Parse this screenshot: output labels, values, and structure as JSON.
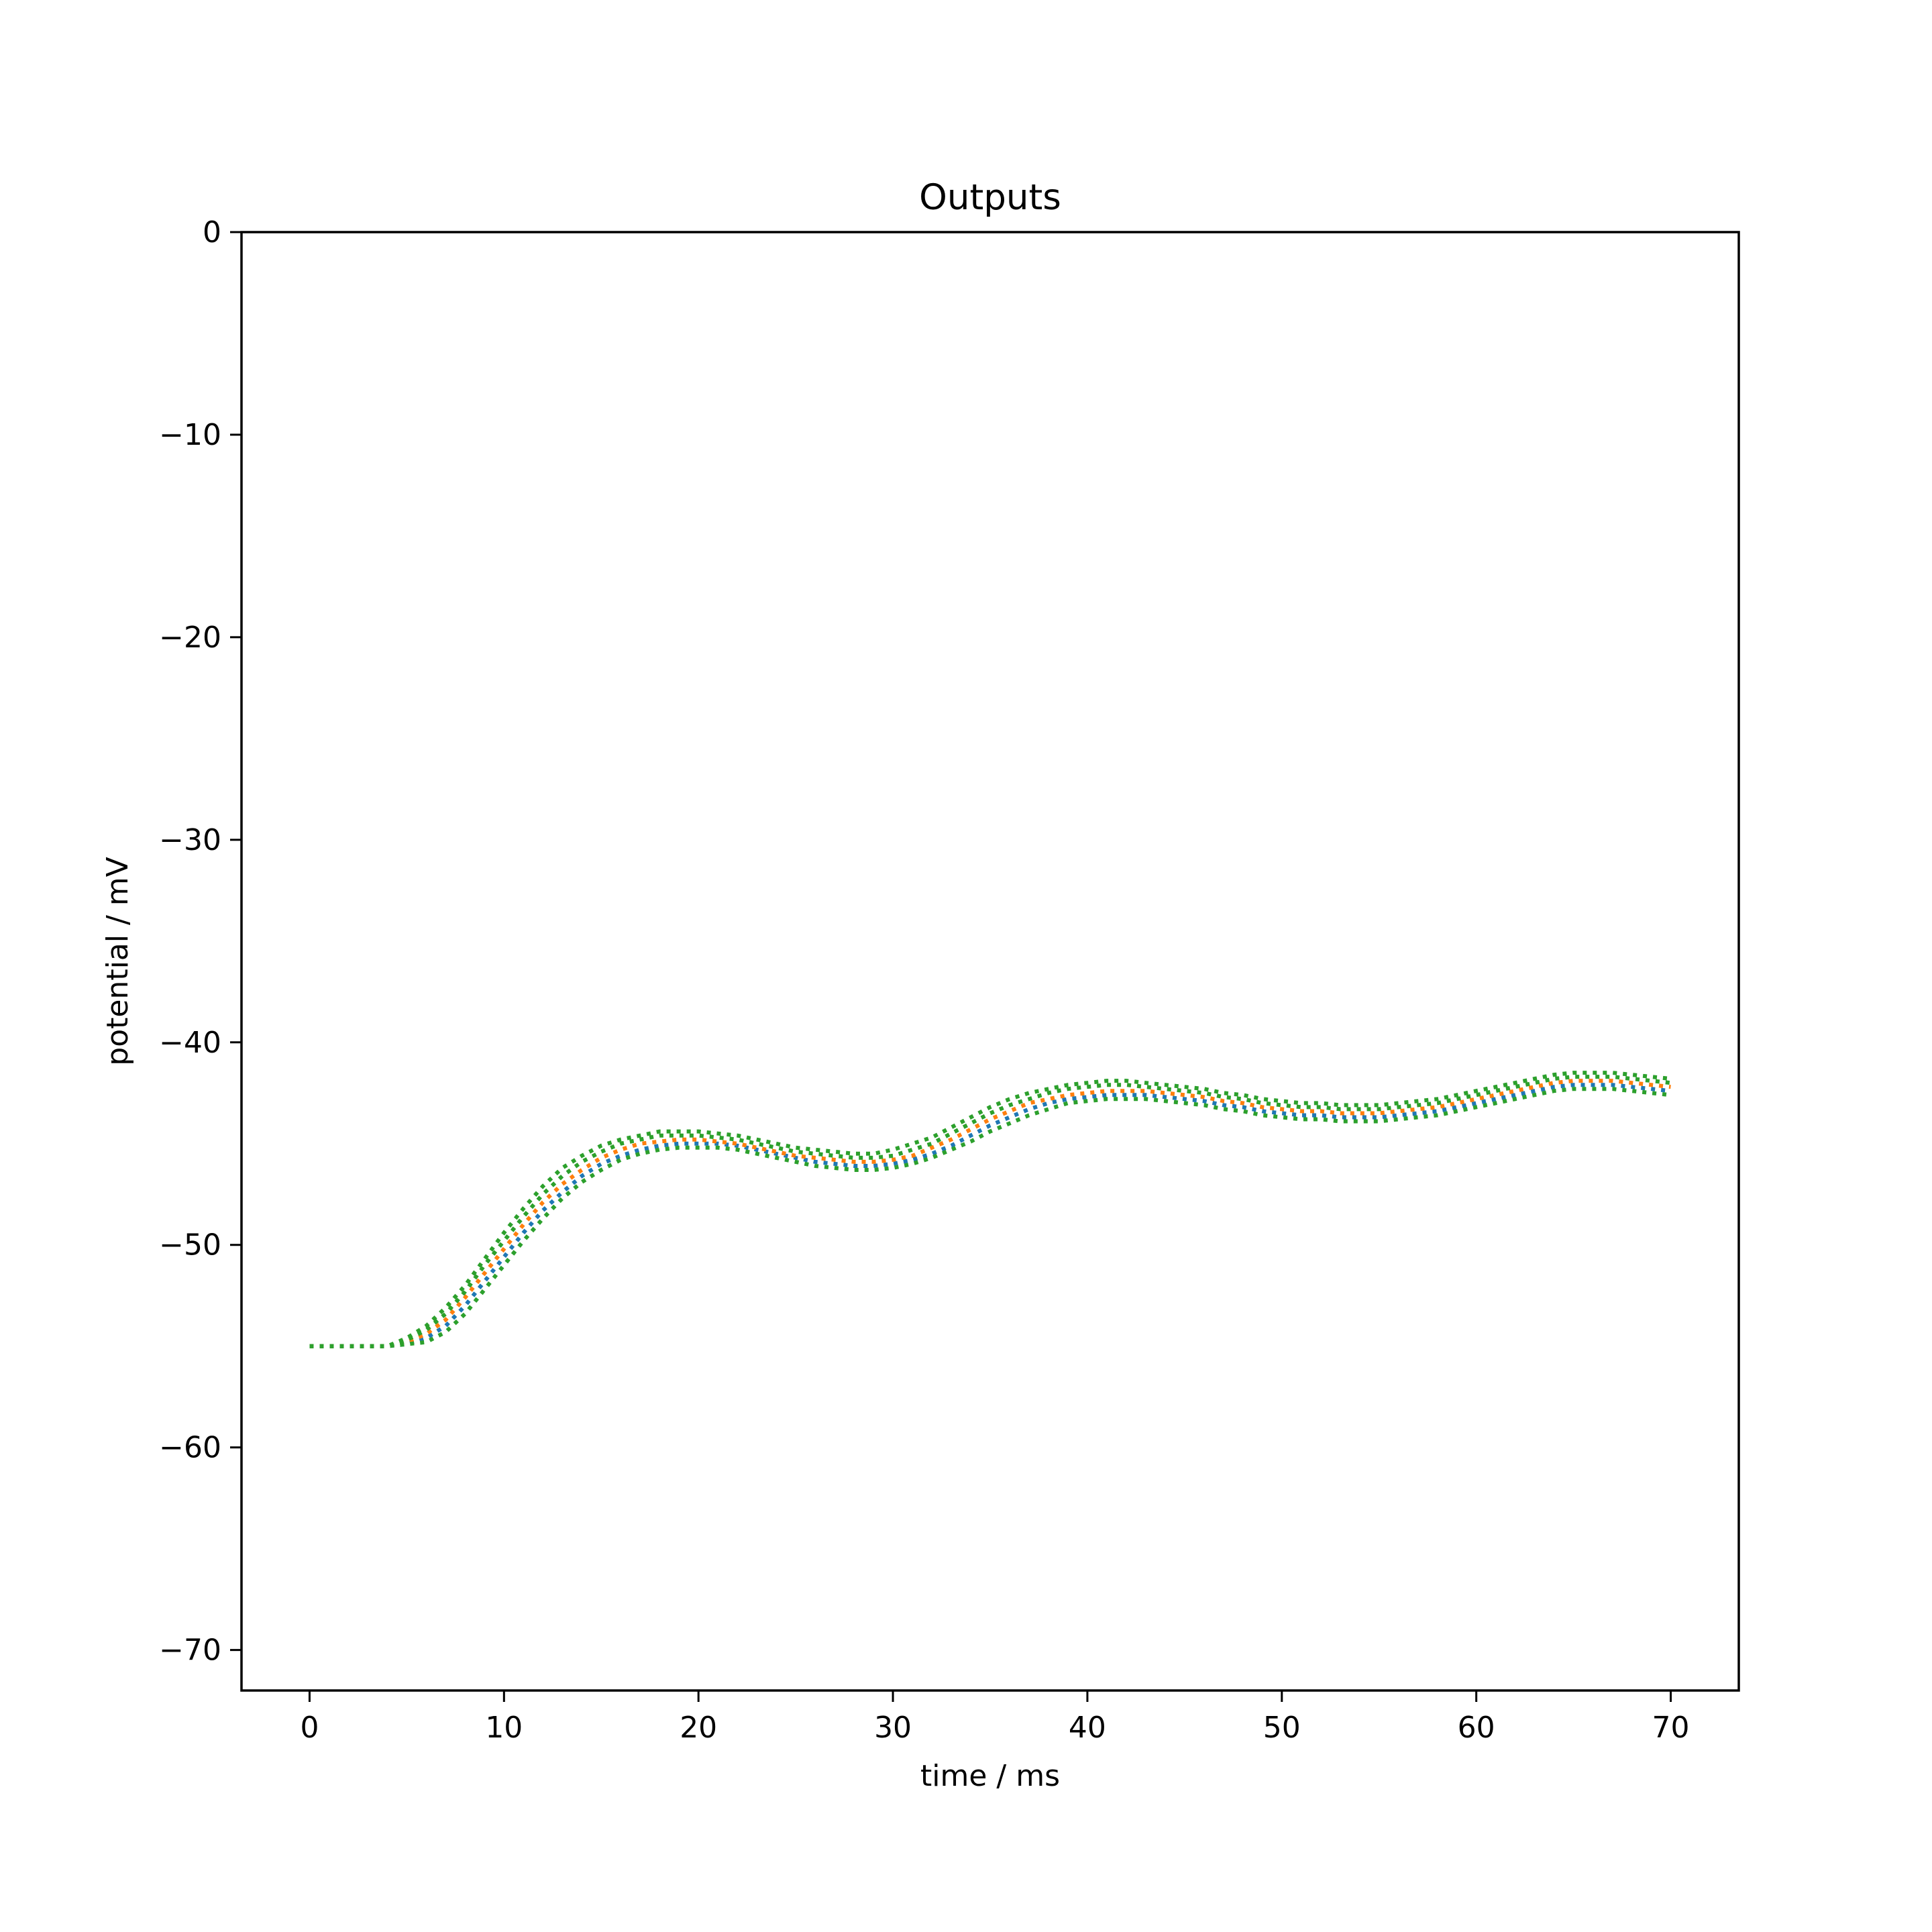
{
  "chart_data": {
    "type": "line",
    "title": "Outputs",
    "xlabel": "time / ms",
    "ylabel": "potential / mV",
    "xlim": [
      -3.5,
      73.5
    ],
    "ylim": [
      -72,
      0
    ],
    "xticks": [
      0,
      10,
      20,
      30,
      40,
      50,
      60,
      70
    ],
    "yticks": [
      0,
      -10,
      -20,
      -30,
      -40,
      -50,
      -60,
      -70
    ],
    "xtick_labels": [
      "0",
      "10",
      "20",
      "30",
      "40",
      "50",
      "60",
      "70"
    ],
    "ytick_labels": [
      "0",
      "−10",
      "−20",
      "−30",
      "−40",
      "−50",
      "−60",
      "−70"
    ],
    "grid": false,
    "legend": "none",
    "line_style": "dotted",
    "series": [
      {
        "color": "#1f77b4",
        "x": [
          0,
          2,
          4,
          5,
          6,
          7,
          8,
          9,
          10,
          11,
          12,
          13,
          14,
          15,
          16,
          17,
          18,
          19,
          20,
          21,
          22,
          23,
          24,
          25,
          26,
          27,
          28,
          29,
          30,
          31,
          32,
          33,
          34,
          35,
          36,
          37,
          38,
          39,
          40,
          41,
          42,
          43,
          44,
          45,
          46,
          47,
          48,
          49,
          50,
          51,
          52,
          53,
          54,
          55,
          56,
          57,
          58,
          59,
          60,
          61,
          62,
          63,
          64,
          65,
          66,
          67,
          68,
          69,
          70
        ],
        "y": [
          -55.0,
          -55.0,
          -55.0,
          -54.9,
          -54.6,
          -54.0,
          -53.0,
          -51.8,
          -50.6,
          -49.4,
          -48.3,
          -47.4,
          -46.6,
          -46.0,
          -45.6,
          -45.3,
          -45.1,
          -45.0,
          -45.0,
          -45.0,
          -45.1,
          -45.3,
          -45.5,
          -45.7,
          -45.9,
          -46.0,
          -46.1,
          -46.1,
          -46.0,
          -45.8,
          -45.5,
          -45.1,
          -44.6,
          -44.1,
          -43.7,
          -43.3,
          -43.0,
          -42.8,
          -42.7,
          -42.6,
          -42.6,
          -42.6,
          -42.7,
          -42.8,
          -42.9,
          -43.1,
          -43.2,
          -43.4,
          -43.5,
          -43.6,
          -43.6,
          -43.7,
          -43.7,
          -43.7,
          -43.6,
          -43.5,
          -43.4,
          -43.2,
          -43.0,
          -42.8,
          -42.6,
          -42.4,
          -42.2,
          -42.1,
          -42.1,
          -42.1,
          -42.2,
          -42.3,
          -42.4
        ]
      },
      {
        "color": "#ff7f0e",
        "x": [
          0,
          2,
          4,
          5,
          6,
          7,
          8,
          9,
          10,
          11,
          12,
          13,
          14,
          15,
          16,
          17,
          18,
          19,
          20,
          21,
          22,
          23,
          24,
          25,
          26,
          27,
          28,
          29,
          30,
          31,
          32,
          33,
          34,
          35,
          36,
          37,
          38,
          39,
          40,
          41,
          42,
          43,
          44,
          45,
          46,
          47,
          48,
          49,
          50,
          51,
          52,
          53,
          54,
          55,
          56,
          57,
          58,
          59,
          60,
          61,
          62,
          63,
          64,
          65,
          66,
          67,
          68,
          69,
          70
        ],
        "y": [
          -55.0,
          -55.0,
          -55.0,
          -54.8,
          -54.4,
          -53.7,
          -52.6,
          -51.4,
          -50.2,
          -49.0,
          -47.9,
          -47.0,
          -46.3,
          -45.7,
          -45.3,
          -45.0,
          -44.9,
          -44.8,
          -44.8,
          -44.9,
          -45.0,
          -45.2,
          -45.4,
          -45.6,
          -45.7,
          -45.8,
          -45.9,
          -45.9,
          -45.8,
          -45.6,
          -45.2,
          -44.8,
          -44.3,
          -43.8,
          -43.4,
          -43.0,
          -42.8,
          -42.6,
          -42.5,
          -42.4,
          -42.4,
          -42.4,
          -42.5,
          -42.6,
          -42.7,
          -42.9,
          -43.0,
          -43.2,
          -43.3,
          -43.4,
          -43.4,
          -43.5,
          -43.5,
          -43.5,
          -43.4,
          -43.3,
          -43.2,
          -43.0,
          -42.8,
          -42.6,
          -42.4,
          -42.2,
          -42.0,
          -41.9,
          -41.9,
          -41.9,
          -42.0,
          -42.1,
          -42.2
        ]
      },
      {
        "color": "#2ca02c",
        "x": [
          0,
          2,
          4,
          5,
          6,
          7,
          8,
          9,
          10,
          11,
          12,
          13,
          14,
          15,
          16,
          17,
          18,
          19,
          20,
          21,
          22,
          23,
          24,
          25,
          26,
          27,
          28,
          29,
          30,
          31,
          32,
          33,
          34,
          35,
          36,
          37,
          38,
          39,
          40,
          41,
          42,
          43,
          44,
          45,
          46,
          47,
          48,
          49,
          50,
          51,
          52,
          53,
          54,
          55,
          56,
          57,
          58,
          59,
          60,
          61,
          62,
          63,
          64,
          65,
          66,
          67,
          68,
          69,
          70
        ],
        "y": [
          -55.0,
          -55.0,
          -55.0,
          -54.7,
          -54.2,
          -53.4,
          -52.3,
          -51.0,
          -49.8,
          -48.6,
          -47.5,
          -46.6,
          -45.9,
          -45.4,
          -45.0,
          -44.8,
          -44.6,
          -44.6,
          -44.6,
          -44.7,
          -44.8,
          -45.0,
          -45.2,
          -45.4,
          -45.5,
          -45.6,
          -45.7,
          -45.7,
          -45.6,
          -45.3,
          -45.0,
          -44.5,
          -44.0,
          -43.5,
          -43.1,
          -42.8,
          -42.5,
          -42.3,
          -42.2,
          -42.1,
          -42.1,
          -42.2,
          -42.3,
          -42.4,
          -42.5,
          -42.7,
          -42.8,
          -43.0,
          -43.1,
          -43.2,
          -43.2,
          -43.3,
          -43.3,
          -43.3,
          -43.2,
          -43.1,
          -43.0,
          -42.8,
          -42.6,
          -42.4,
          -42.2,
          -42.0,
          -41.8,
          -41.7,
          -41.7,
          -41.7,
          -41.8,
          -41.9,
          -42.0
        ]
      },
      {
        "color": "#2ca02c",
        "x": [
          0,
          2,
          4,
          5,
          6,
          7,
          8,
          9,
          10,
          11,
          12,
          13,
          14,
          15,
          16,
          17,
          18,
          19,
          20,
          21,
          22,
          23,
          24,
          25,
          26,
          27,
          28,
          29,
          30,
          31,
          32,
          33,
          34,
          35,
          36,
          37,
          38,
          39,
          40,
          41,
          42,
          43,
          44,
          45,
          46,
          47,
          48,
          49,
          50,
          51,
          52,
          53,
          54,
          55,
          56,
          57,
          58,
          59,
          60,
          61,
          62,
          63,
          64,
          65,
          66,
          67,
          68,
          69,
          70
        ],
        "y": [
          -55.0,
          -55.0,
          -55.0,
          -54.9,
          -54.8,
          -54.3,
          -53.4,
          -52.2,
          -51.0,
          -49.8,
          -48.7,
          -47.7,
          -46.9,
          -46.3,
          -45.8,
          -45.5,
          -45.3,
          -45.2,
          -45.2,
          -45.2,
          -45.3,
          -45.5,
          -45.7,
          -45.9,
          -46.1,
          -46.2,
          -46.3,
          -46.3,
          -46.2,
          -46.0,
          -45.7,
          -45.3,
          -44.9,
          -44.4,
          -44.0,
          -43.6,
          -43.3,
          -43.0,
          -42.9,
          -42.8,
          -42.8,
          -42.8,
          -42.9,
          -43.0,
          -43.1,
          -43.3,
          -43.4,
          -43.6,
          -43.7,
          -43.8,
          -43.8,
          -43.9,
          -43.9,
          -43.9,
          -43.8,
          -43.7,
          -43.6,
          -43.4,
          -43.2,
          -43.0,
          -42.8,
          -42.6,
          -42.4,
          -42.3,
          -42.3,
          -42.3,
          -42.4,
          -42.5,
          -42.6
        ]
      },
      {
        "color": "#2ca02c",
        "x": [
          0,
          2,
          4,
          5,
          6,
          7,
          8,
          9,
          10,
          11,
          12,
          13,
          14,
          15,
          16,
          17,
          18,
          19,
          20,
          21,
          22,
          23,
          24,
          25,
          26,
          27,
          28,
          29,
          30,
          31,
          32,
          33,
          34,
          35,
          36,
          37,
          38,
          39,
          40,
          41,
          42,
          43,
          44,
          45,
          46,
          47,
          48,
          49,
          50,
          51,
          52,
          53,
          54,
          55,
          56,
          57,
          58,
          59,
          60,
          61,
          62,
          63,
          64,
          65,
          66,
          67,
          68,
          69,
          70
        ],
        "y": [
          -55.0,
          -55.0,
          -55.0,
          -54.6,
          -54.0,
          -53.1,
          -52.0,
          -50.7,
          -49.4,
          -48.2,
          -47.1,
          -46.2,
          -45.6,
          -45.1,
          -44.8,
          -44.6,
          -44.4,
          -44.4,
          -44.4,
          -44.5,
          -44.6,
          -44.8,
          -45.0,
          -45.2,
          -45.3,
          -45.4,
          -45.5,
          -45.5,
          -45.3,
          -45.0,
          -44.7,
          -44.2,
          -43.7,
          -43.2,
          -42.8,
          -42.5,
          -42.3,
          -42.1,
          -42.0,
          -41.9,
          -41.9,
          -42.0,
          -42.1,
          -42.2,
          -42.3,
          -42.5,
          -42.6,
          -42.8,
          -42.9,
          -43.0,
          -43.0,
          -43.1,
          -43.1,
          -43.1,
          -43.0,
          -42.9,
          -42.8,
          -42.6,
          -42.4,
          -42.2,
          -42.0,
          -41.8,
          -41.6,
          -41.5,
          -41.5,
          -41.5,
          -41.6,
          -41.7,
          -41.8
        ]
      }
    ]
  }
}
